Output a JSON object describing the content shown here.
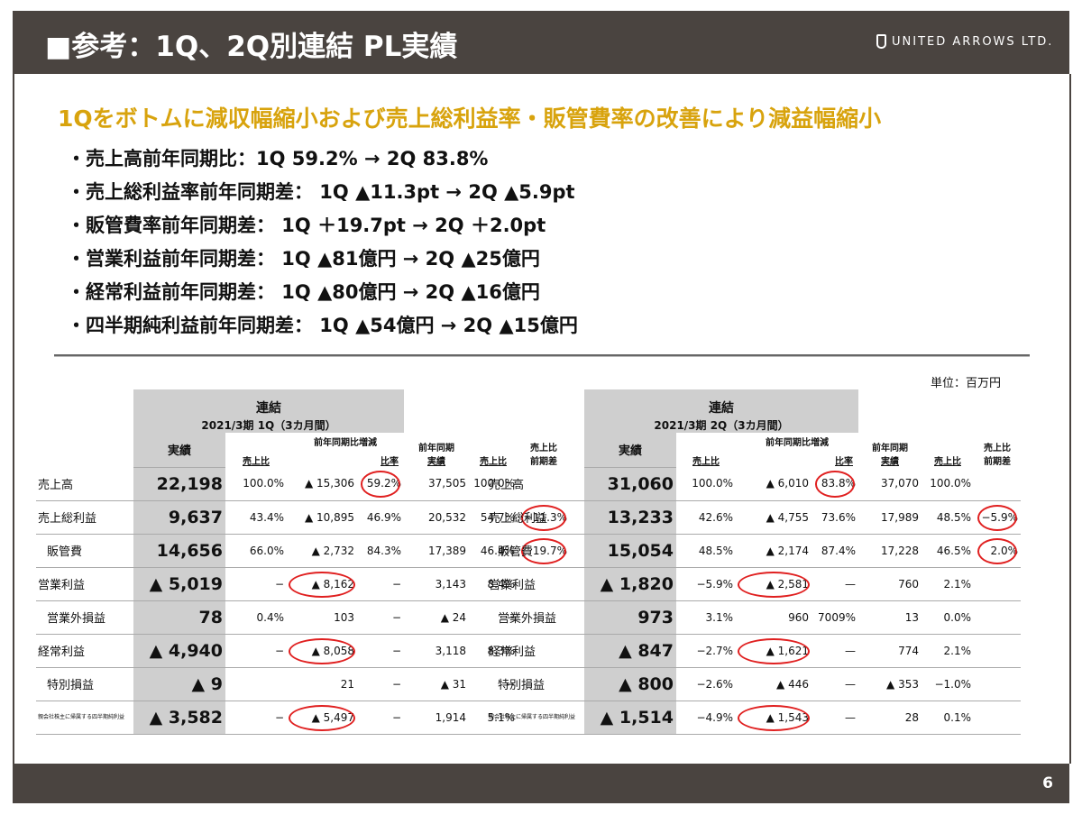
{
  "header": {
    "title": "■参考：1Q、2Q別連結 PL実績",
    "logo": "UNITED ARROWS LTD."
  },
  "headline": "1Qをボトムに減収幅縮小および売上総利益率・販管費率の改善により減益幅縮小",
  "bullets": [
    "・売上高前年同期比：1Q  59.2% → 2Q 83.8%",
    "・売上総利益率前年同期差：  1Q ▲11.3pt → 2Q ▲5.9pt",
    "・販管費率前年同期差：  1Q ＋19.7pt → 2Q ＋2.0pt",
    "・営業利益前年同期差：  1Q ▲81億円 → 2Q ▲25億円",
    "・経常利益前年同期差：  1Q ▲80億円 → 2Q ▲16億円",
    "・四半期純利益前年同期差：  1Q ▲54億円 → 2Q ▲15億円"
  ],
  "unit_label": "単位：百万円",
  "labels": {
    "renketsu": "連結",
    "jisseki": "実績",
    "uriagehi": "売上比",
    "zennen_zogen": "前年同期比増減",
    "hiritsu": "比率",
    "zennen_jisseki_1": "前年同期",
    "zennen_jisseki_2": "実績",
    "uriagehi_zenki_1": "売上比",
    "uriagehi_zenki_2": "前期差"
  },
  "rows": [
    "売上高",
    "売上総利益",
    "販管費",
    "営業利益",
    "営業外損益",
    "経常利益",
    "特別損益",
    "親会社株主に帰属する四半期純利益"
  ],
  "q1": {
    "period": "2021/3期  1Q（3カ月間）",
    "data": [
      [
        "22,198",
        "100.0%",
        "▲ 15,306",
        "59.2%",
        "37,505",
        "100.0%",
        ""
      ],
      [
        "9,637",
        "43.4%",
        "▲ 10,895",
        "46.9%",
        "20,532",
        "54.7%",
        "−11.3%"
      ],
      [
        "14,656",
        "66.0%",
        "▲ 2,732",
        "84.3%",
        "17,389",
        "46.4%",
        "19.7%"
      ],
      [
        "▲ 5,019",
        "−",
        "▲ 8,162",
        "−",
        "3,143",
        "8.4%",
        ""
      ],
      [
        "78",
        "0.4%",
        "103",
        "−",
        "▲ 24",
        "−",
        ""
      ],
      [
        "▲ 4,940",
        "−",
        "▲ 8,058",
        "−",
        "3,118",
        "8.3%",
        ""
      ],
      [
        "▲ 9",
        "",
        "21",
        "−",
        "▲ 31",
        "−",
        ""
      ],
      [
        "▲ 3,582",
        "−",
        "▲ 5,497",
        "−",
        "1,914",
        "5.1%",
        ""
      ]
    ]
  },
  "q2": {
    "period": "2021/3期  2Q（3カ月間）",
    "data": [
      [
        "31,060",
        "100.0%",
        "▲ 6,010",
        "83.8%",
        "37,070",
        "100.0%",
        ""
      ],
      [
        "13,233",
        "42.6%",
        "▲ 4,755",
        "73.6%",
        "17,989",
        "48.5%",
        "−5.9%"
      ],
      [
        "15,054",
        "48.5%",
        "▲ 2,174",
        "87.4%",
        "17,228",
        "46.5%",
        "2.0%"
      ],
      [
        "▲ 1,820",
        "−5.9%",
        "▲ 2,581",
        "—",
        "760",
        "2.1%",
        ""
      ],
      [
        "973",
        "3.1%",
        "960",
        "7009%",
        "13",
        "0.0%",
        ""
      ],
      [
        "▲ 847",
        "−2.7%",
        "▲ 1,621",
        "—",
        "774",
        "2.1%",
        ""
      ],
      [
        "▲ 800",
        "−2.6%",
        "▲ 446",
        "—",
        "▲ 353",
        "−1.0%",
        ""
      ],
      [
        "▲ 1,514",
        "−4.9%",
        "▲ 1,543",
        "—",
        "28",
        "0.1%",
        ""
      ]
    ]
  },
  "circled_q1": {
    "0-3": true,
    "1-6": true,
    "2-6": true,
    "3-2": true,
    "5-2": true,
    "7-2": true
  },
  "circled_q2": {
    "0-3": true,
    "1-6": true,
    "2-6": true,
    "3-2": true,
    "5-2": true,
    "7-2": true
  },
  "page_number": "6",
  "colors": {
    "header_bg": "#4a4440",
    "headline": "#d8a30d",
    "circle": "#e02020",
    "cell_gray": "#cfcfcf"
  }
}
